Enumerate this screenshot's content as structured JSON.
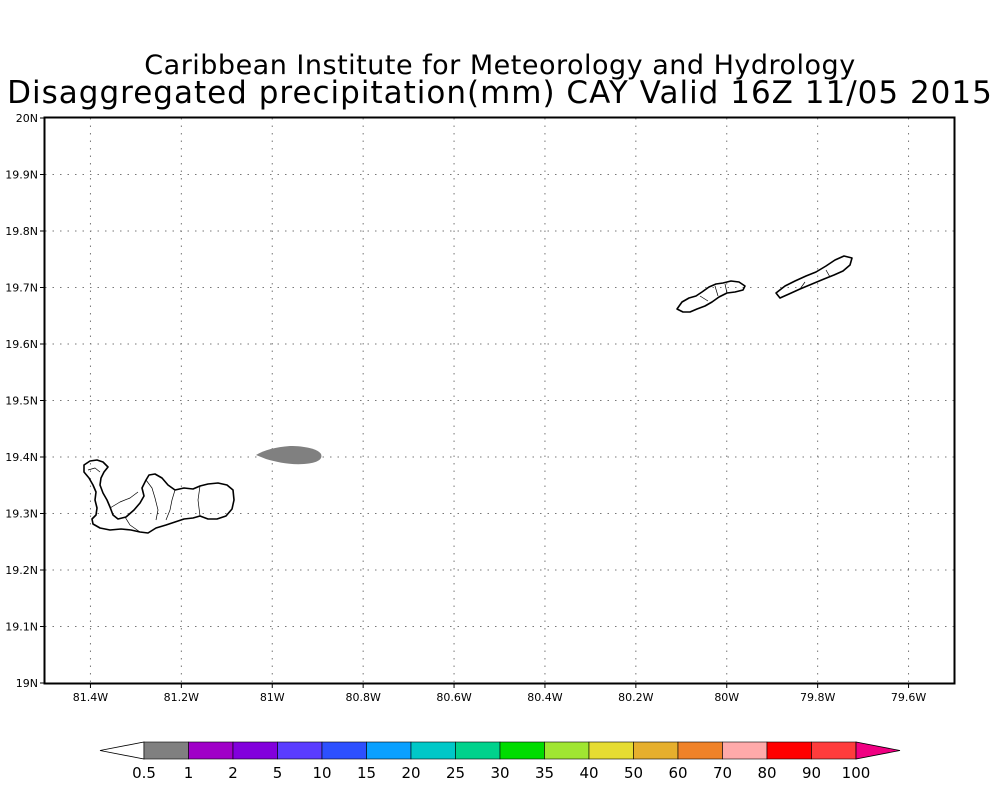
{
  "title": {
    "line1": "Caribbean Institute for Meteorology and Hydrology",
    "line2": "Disaggregated precipitation(mm) CAY Valid 16Z 11/05 2015"
  },
  "map": {
    "lon_range": [
      -81.5,
      -79.5
    ],
    "lat_range": [
      19.0,
      20.0
    ],
    "x_ticks": [
      {
        "value": -81.4,
        "label": "81.4W"
      },
      {
        "value": -81.2,
        "label": "81.2W"
      },
      {
        "value": -81.0,
        "label": "81W"
      },
      {
        "value": -80.8,
        "label": "80.8W"
      },
      {
        "value": -80.6,
        "label": "80.6W"
      },
      {
        "value": -80.4,
        "label": "80.4W"
      },
      {
        "value": -80.2,
        "label": "80.2W"
      },
      {
        "value": -80.0,
        "label": "80W"
      },
      {
        "value": -79.8,
        "label": "79.8W"
      },
      {
        "value": -79.6,
        "label": "79.6W"
      }
    ],
    "y_ticks": [
      {
        "value": 19.0,
        "label": "19N"
      },
      {
        "value": 19.1,
        "label": "19.1N"
      },
      {
        "value": 19.2,
        "label": "19.2N"
      },
      {
        "value": 19.3,
        "label": "19.3N"
      },
      {
        "value": 19.4,
        "label": "19.4N"
      },
      {
        "value": 19.5,
        "label": "19.5N"
      },
      {
        "value": 19.6,
        "label": "19.6N"
      },
      {
        "value": 19.7,
        "label": "19.7N"
      },
      {
        "value": 19.8,
        "label": "19.8N"
      },
      {
        "value": 19.9,
        "label": "19.9N"
      },
      {
        "value": 20.0,
        "label": "20N"
      }
    ],
    "grid": "dotted",
    "islands": [
      "grand-cayman",
      "cayman-brac",
      "little-cayman"
    ],
    "precip_area": {
      "lon_center": -80.95,
      "lat_center": 19.405,
      "category": "0.5-1",
      "color": "#808080"
    }
  },
  "colorbar": {
    "labels": [
      "0.5",
      "1",
      "2",
      "5",
      "10",
      "15",
      "20",
      "25",
      "30",
      "35",
      "40",
      "50",
      "60",
      "70",
      "80",
      "90",
      "100"
    ],
    "colors": [
      "#808080",
      "#a000c8",
      "#8200dc",
      "#5a3cff",
      "#2d50ff",
      "#0aa0ff",
      "#00c8c8",
      "#00d28c",
      "#00dc00",
      "#a0e632",
      "#e6dc32",
      "#e6af2d",
      "#f08228",
      "#ffaaaa",
      "#ff0000",
      "#ff3c3c"
    ],
    "under_color": "#ffffff",
    "over_color": "#f00082"
  }
}
